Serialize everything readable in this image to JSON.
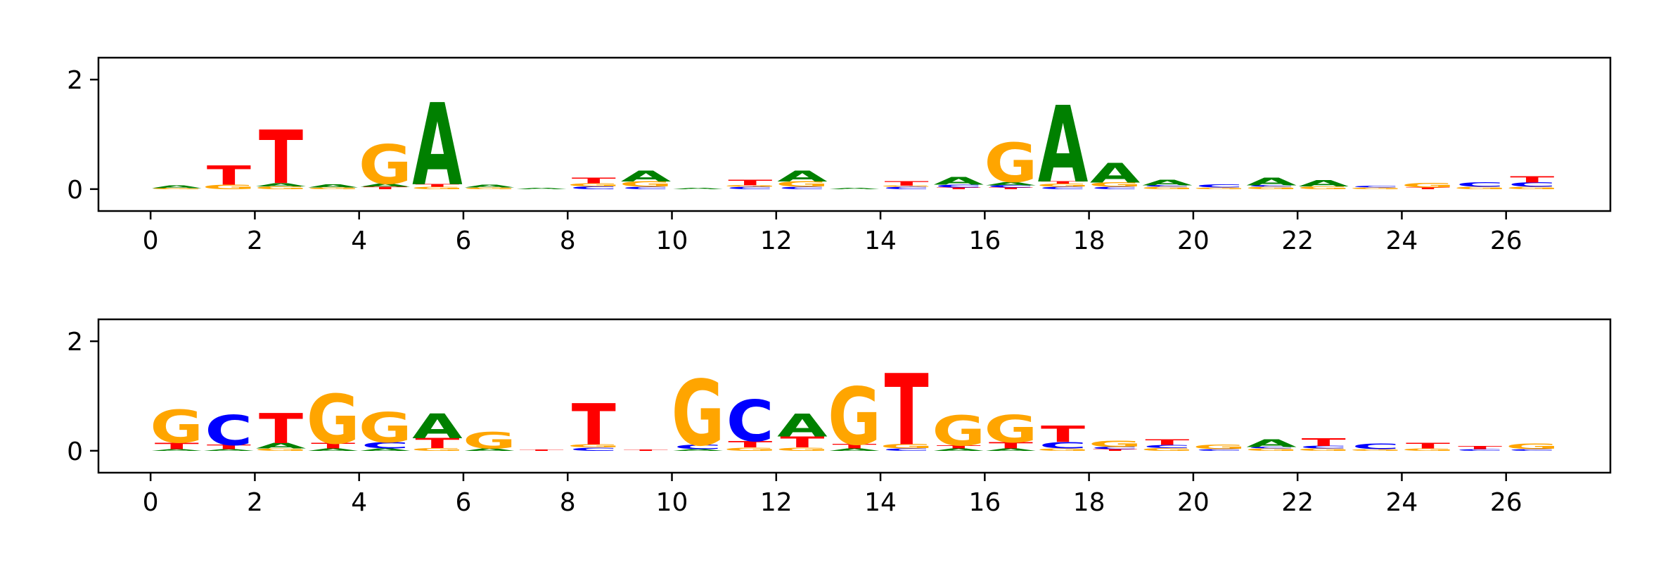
{
  "colors": {
    "A": "#008000",
    "C": "#0000ff",
    "G": "#ffa500",
    "T": "#ff0000"
  },
  "chart_data": [
    {
      "type": "sequence-logo",
      "title": "",
      "xlabel": "",
      "ylabel": "",
      "xlim": [
        -1,
        28
      ],
      "ylim": [
        -0.4,
        2.4
      ],
      "xticks": [
        0,
        2,
        4,
        6,
        8,
        10,
        12,
        14,
        16,
        18,
        20,
        22,
        24,
        26
      ],
      "yticks": [
        0,
        2
      ],
      "positions": [
        {
          "x": 0.5,
          "letters": [
            [
              "G",
              0.02
            ],
            [
              "A",
              0.05
            ]
          ]
        },
        {
          "x": 1.5,
          "letters": [
            [
              "G",
              0.08
            ],
            [
              "T",
              0.35
            ]
          ]
        },
        {
          "x": 2.5,
          "letters": [
            [
              "G",
              0.05
            ],
            [
              "A",
              0.06
            ],
            [
              "T",
              0.98
            ]
          ]
        },
        {
          "x": 3.5,
          "letters": [
            [
              "G",
              0.03
            ],
            [
              "A",
              0.06
            ]
          ]
        },
        {
          "x": 4.5,
          "letters": [
            [
              "T",
              0.04
            ],
            [
              "A",
              0.06
            ],
            [
              "G",
              0.72
            ]
          ]
        },
        {
          "x": 5.5,
          "letters": [
            [
              "G",
              0.04
            ],
            [
              "T",
              0.05
            ],
            [
              "A",
              1.5
            ]
          ]
        },
        {
          "x": 6.5,
          "letters": [
            [
              "G",
              0.03
            ],
            [
              "A",
              0.05
            ]
          ]
        },
        {
          "x": 7.5,
          "letters": [
            [
              "A",
              0.02
            ]
          ]
        },
        {
          "x": 8.5,
          "letters": [
            [
              "C",
              0.05
            ],
            [
              "G",
              0.06
            ],
            [
              "T",
              0.1
            ]
          ]
        },
        {
          "x": 9.5,
          "letters": [
            [
              "C",
              0.04
            ],
            [
              "G",
              0.1
            ],
            [
              "A",
              0.2
            ]
          ]
        },
        {
          "x": 10.5,
          "letters": [
            [
              "A",
              0.02
            ]
          ]
        },
        {
          "x": 11.5,
          "letters": [
            [
              "C",
              0.04
            ],
            [
              "G",
              0.03
            ],
            [
              "T",
              0.1
            ]
          ]
        },
        {
          "x": 12.5,
          "letters": [
            [
              "C",
              0.04
            ],
            [
              "G",
              0.1
            ],
            [
              "A",
              0.2
            ]
          ]
        },
        {
          "x": 13.5,
          "letters": [
            [
              "A",
              0.02
            ]
          ]
        },
        {
          "x": 14.5,
          "letters": [
            [
              "C",
              0.04
            ],
            [
              "G",
              0.02
            ],
            [
              "T",
              0.08
            ]
          ]
        },
        {
          "x": 15.5,
          "letters": [
            [
              "T",
              0.03
            ],
            [
              "C",
              0.05
            ],
            [
              "A",
              0.14
            ]
          ]
        },
        {
          "x": 16.5,
          "letters": [
            [
              "T",
              0.03
            ],
            [
              "C",
              0.04
            ],
            [
              "A",
              0.06
            ],
            [
              "G",
              0.72
            ]
          ]
        },
        {
          "x": 17.5,
          "letters": [
            [
              "C",
              0.04
            ],
            [
              "G",
              0.06
            ],
            [
              "T",
              0.04
            ],
            [
              "A",
              1.4
            ]
          ]
        },
        {
          "x": 18.5,
          "letters": [
            [
              "C",
              0.04
            ],
            [
              "G",
              0.08
            ],
            [
              "A",
              0.36
            ]
          ]
        },
        {
          "x": 19.5,
          "letters": [
            [
              "G",
              0.04
            ],
            [
              "C",
              0.03
            ],
            [
              "A",
              0.1
            ]
          ]
        },
        {
          "x": 20.5,
          "letters": [
            [
              "G",
              0.03
            ],
            [
              "C",
              0.06
            ]
          ]
        },
        {
          "x": 21.5,
          "letters": [
            [
              "G",
              0.04
            ],
            [
              "C",
              0.03
            ],
            [
              "A",
              0.14
            ]
          ]
        },
        {
          "x": 22.5,
          "letters": [
            [
              "G",
              0.05
            ],
            [
              "A",
              0.12
            ]
          ]
        },
        {
          "x": 23.5,
          "letters": [
            [
              "G",
              0.03
            ],
            [
              "C",
              0.03
            ]
          ]
        },
        {
          "x": 24.5,
          "letters": [
            [
              "T",
              0.03
            ],
            [
              "G",
              0.08
            ]
          ]
        },
        {
          "x": 25.5,
          "letters": [
            [
              "G",
              0.04
            ],
            [
              "C",
              0.08
            ]
          ]
        },
        {
          "x": 26.5,
          "letters": [
            [
              "G",
              0.04
            ],
            [
              "C",
              0.08
            ],
            [
              "T",
              0.12
            ]
          ]
        }
      ]
    },
    {
      "type": "sequence-logo",
      "title": "",
      "xlabel": "",
      "ylabel": "",
      "xlim": [
        -1,
        28
      ],
      "ylim": [
        -0.4,
        2.4
      ],
      "xticks": [
        0,
        2,
        4,
        6,
        8,
        10,
        12,
        14,
        16,
        18,
        20,
        22,
        24,
        26
      ],
      "yticks": [
        0,
        2
      ],
      "positions": [
        {
          "x": 0.5,
          "letters": [
            [
              "A",
              0.03
            ],
            [
              "T",
              0.12
            ],
            [
              "G",
              0.6
            ]
          ]
        },
        {
          "x": 1.5,
          "letters": [
            [
              "A",
              0.03
            ],
            [
              "T",
              0.08
            ],
            [
              "C",
              0.55
            ]
          ]
        },
        {
          "x": 2.5,
          "letters": [
            [
              "G",
              0.04
            ],
            [
              "A",
              0.1
            ],
            [
              "T",
              0.55
            ]
          ]
        },
        {
          "x": 3.5,
          "letters": [
            [
              "A",
              0.04
            ],
            [
              "T",
              0.1
            ],
            [
              "G",
              0.9
            ]
          ]
        },
        {
          "x": 4.5,
          "letters": [
            [
              "A",
              0.04
            ],
            [
              "C",
              0.12
            ],
            [
              "G",
              0.55
            ]
          ]
        },
        {
          "x": 5.5,
          "letters": [
            [
              "G",
              0.05
            ],
            [
              "T",
              0.18
            ],
            [
              "A",
              0.45
            ]
          ]
        },
        {
          "x": 6.5,
          "letters": [
            [
              "A",
              0.04
            ],
            [
              "G",
              0.3
            ]
          ]
        },
        {
          "x": 7.5,
          "letters": [
            [
              "T",
              0.02
            ]
          ]
        },
        {
          "x": 8.5,
          "letters": [
            [
              "C",
              0.06
            ],
            [
              "G",
              0.06
            ],
            [
              "T",
              0.75
            ]
          ]
        },
        {
          "x": 9.5,
          "letters": [
            [
              "T",
              0.02
            ]
          ]
        },
        {
          "x": 10.5,
          "letters": [
            [
              "A",
              0.03
            ],
            [
              "C",
              0.08
            ],
            [
              "G",
              1.2
            ]
          ]
        },
        {
          "x": 11.5,
          "letters": [
            [
              "G",
              0.06
            ],
            [
              "T",
              0.12
            ],
            [
              "C",
              0.75
            ]
          ]
        },
        {
          "x": 12.5,
          "letters": [
            [
              "G",
              0.06
            ],
            [
              "T",
              0.2
            ],
            [
              "A",
              0.42
            ]
          ]
        },
        {
          "x": 13.5,
          "letters": [
            [
              "A",
              0.04
            ],
            [
              "T",
              0.08
            ],
            [
              "G",
              1.05
            ]
          ]
        },
        {
          "x": 14.5,
          "letters": [
            [
              "C",
              0.04
            ],
            [
              "G",
              0.08
            ],
            [
              "T",
              1.3
            ]
          ]
        },
        {
          "x": 15.5,
          "letters": [
            [
              "A",
              0.04
            ],
            [
              "T",
              0.06
            ],
            [
              "G",
              0.55
            ]
          ]
        },
        {
          "x": 16.5,
          "letters": [
            [
              "A",
              0.04
            ],
            [
              "T",
              0.12
            ],
            [
              "G",
              0.5
            ]
          ]
        },
        {
          "x": 17.5,
          "letters": [
            [
              "G",
              0.04
            ],
            [
              "C",
              0.12
            ],
            [
              "T",
              0.3
            ]
          ]
        },
        {
          "x": 18.5,
          "letters": [
            [
              "T",
              0.03
            ],
            [
              "C",
              0.04
            ],
            [
              "G",
              0.12
            ]
          ]
        },
        {
          "x": 19.5,
          "letters": [
            [
              "G",
              0.05
            ],
            [
              "C",
              0.06
            ],
            [
              "T",
              0.1
            ]
          ]
        },
        {
          "x": 20.5,
          "letters": [
            [
              "C",
              0.03
            ],
            [
              "G",
              0.08
            ]
          ]
        },
        {
          "x": 21.5,
          "letters": [
            [
              "G",
              0.04
            ],
            [
              "C",
              0.03
            ],
            [
              "A",
              0.14
            ]
          ]
        },
        {
          "x": 22.5,
          "letters": [
            [
              "G",
              0.04
            ],
            [
              "C",
              0.05
            ],
            [
              "T",
              0.14
            ]
          ]
        },
        {
          "x": 23.5,
          "letters": [
            [
              "G",
              0.03
            ],
            [
              "C",
              0.1
            ]
          ]
        },
        {
          "x": 24.5,
          "letters": [
            [
              "G",
              0.04
            ],
            [
              "T",
              0.1
            ]
          ]
        },
        {
          "x": 25.5,
          "letters": [
            [
              "C",
              0.03
            ],
            [
              "T",
              0.06
            ]
          ]
        },
        {
          "x": 26.5,
          "letters": [
            [
              "C",
              0.03
            ],
            [
              "G",
              0.1
            ]
          ]
        }
      ]
    }
  ]
}
